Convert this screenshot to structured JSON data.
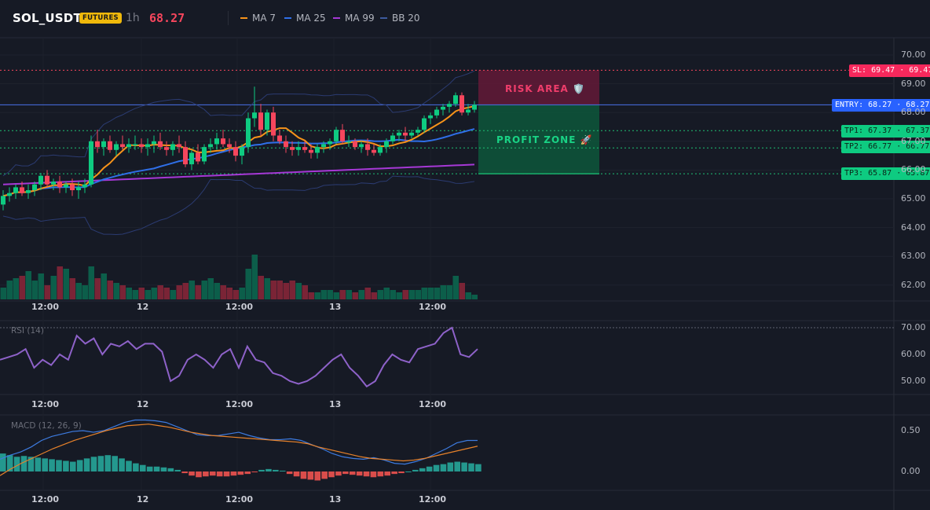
{
  "header": {
    "symbol": "SOL_USDT",
    "badge": "FUTURES",
    "timeframe": "1h",
    "price": "68.27",
    "legend": [
      {
        "label": "MA 7",
        "color": "#f7931a"
      },
      {
        "label": "MA 25",
        "color": "#2f6fe8"
      },
      {
        "label": "MA 99",
        "color": "#a638d6"
      },
      {
        "label": "BB 20",
        "color": "#3d5a9e"
      }
    ]
  },
  "colors": {
    "up": "#0ecb81",
    "down": "#f6465d",
    "ma7": "#f7931a",
    "ma25": "#2f6fe8",
    "ma99": "#a638d6",
    "bb": "#2e3f7a",
    "rsi": "#8e62c9",
    "macd": "#3d7be0",
    "signal": "#e8822a"
  },
  "price_axis": [
    "70.00",
    "69.00",
    "68.00",
    "67.00",
    "66.00",
    "65.00",
    "64.00",
    "63.00",
    "62.00"
  ],
  "price_levels": {
    "sl": {
      "label": "SL: 69.47 · 69.47",
      "value": 69.47
    },
    "entry": {
      "label": "ENTRY: 68.27 · 68.27",
      "value": 68.27
    },
    "tp1": {
      "label": "TP1: 67.37 · 67.37",
      "value": 67.37
    },
    "tp2": {
      "label": "TP2: 66.77 · 66.77",
      "value": 66.77
    },
    "tp3": {
      "label": "TP3: 65.87 · 65.87",
      "value": 65.87
    }
  },
  "zones": {
    "risk": "RISK AREA 🛡️",
    "profit": "PROFIT ZONE 🚀"
  },
  "time_labels": [
    "12:00",
    "12",
    "12:00",
    "13",
    "12:00"
  ],
  "rsi": {
    "title": "RSI (14)",
    "axis": [
      "70.00",
      "60.00",
      "50.00"
    ]
  },
  "macd": {
    "title": "MACD (12, 26, 9)",
    "axis": [
      "0.50",
      "0.00"
    ]
  },
  "chart_data": {
    "type": "candlestick",
    "candles": [
      [
        64.8,
        65.3,
        64.6,
        65.1
      ],
      [
        65.1,
        65.4,
        64.9,
        65.2
      ],
      [
        65.2,
        65.5,
        65.0,
        65.4
      ],
      [
        65.4,
        65.6,
        65.1,
        65.2
      ],
      [
        65.2,
        65.5,
        65.0,
        65.3
      ],
      [
        65.3,
        65.6,
        65.1,
        65.5
      ],
      [
        65.5,
        65.9,
        65.3,
        65.8
      ],
      [
        65.8,
        66.0,
        65.4,
        65.5
      ],
      [
        65.5,
        65.7,
        65.3,
        65.6
      ],
      [
        65.6,
        65.8,
        65.2,
        65.4
      ],
      [
        65.4,
        65.6,
        65.2,
        65.5
      ],
      [
        65.5,
        65.7,
        65.1,
        65.3
      ],
      [
        65.3,
        65.6,
        65.0,
        65.4
      ],
      [
        65.4,
        65.7,
        65.2,
        65.5
      ],
      [
        65.5,
        67.2,
        65.4,
        67.0
      ],
      [
        67.0,
        67.4,
        66.6,
        66.8
      ],
      [
        66.8,
        67.1,
        66.5,
        67.0
      ],
      [
        67.0,
        67.2,
        66.6,
        66.7
      ],
      [
        66.7,
        67.0,
        66.5,
        66.9
      ],
      [
        66.9,
        67.2,
        66.7,
        66.8
      ],
      [
        66.8,
        67.1,
        66.6,
        66.9
      ],
      [
        66.9,
        67.2,
        66.7,
        66.9
      ],
      [
        66.9,
        67.1,
        66.6,
        66.8
      ],
      [
        66.8,
        67.1,
        66.5,
        66.9
      ],
      [
        66.9,
        67.2,
        66.6,
        67.0
      ],
      [
        67.0,
        67.3,
        66.7,
        66.8
      ],
      [
        66.8,
        67.0,
        66.5,
        66.7
      ],
      [
        66.7,
        67.0,
        66.5,
        66.9
      ],
      [
        66.9,
        67.2,
        66.6,
        66.8
      ],
      [
        66.8,
        67.0,
        66.1,
        66.2
      ],
      [
        66.2,
        66.7,
        66.0,
        66.6
      ],
      [
        66.6,
        66.9,
        66.2,
        66.3
      ],
      [
        66.3,
        66.9,
        66.2,
        66.8
      ],
      [
        66.8,
        67.1,
        66.6,
        66.9
      ],
      [
        66.9,
        67.3,
        66.7,
        67.1
      ],
      [
        67.1,
        67.4,
        66.8,
        66.9
      ],
      [
        66.9,
        67.1,
        66.6,
        66.8
      ],
      [
        66.8,
        67.0,
        66.3,
        66.5
      ],
      [
        66.5,
        66.9,
        66.2,
        66.8
      ],
      [
        66.8,
        68.0,
        66.6,
        67.8
      ],
      [
        67.8,
        68.9,
        67.5,
        68.0
      ],
      [
        68.0,
        68.3,
        67.2,
        67.4
      ],
      [
        67.4,
        68.1,
        67.2,
        68.0
      ],
      [
        68.0,
        68.2,
        67.0,
        67.2
      ],
      [
        67.2,
        67.4,
        66.9,
        67.0
      ],
      [
        67.0,
        67.2,
        66.6,
        66.8
      ],
      [
        66.8,
        67.0,
        66.5,
        66.7
      ],
      [
        66.7,
        67.0,
        66.5,
        66.8
      ],
      [
        66.8,
        67.0,
        66.6,
        66.7
      ],
      [
        66.7,
        66.9,
        66.4,
        66.6
      ],
      [
        66.6,
        66.9,
        66.4,
        66.8
      ],
      [
        66.8,
        67.0,
        66.6,
        66.9
      ],
      [
        66.9,
        67.1,
        66.7,
        67.0
      ],
      [
        67.0,
        67.5,
        66.9,
        67.4
      ],
      [
        67.4,
        67.6,
        66.9,
        67.0
      ],
      [
        67.0,
        67.2,
        66.8,
        67.0
      ],
      [
        67.0,
        67.1,
        66.7,
        66.8
      ],
      [
        66.8,
        67.0,
        66.6,
        66.9
      ],
      [
        66.9,
        67.1,
        66.5,
        66.7
      ],
      [
        66.7,
        66.9,
        66.5,
        66.6
      ],
      [
        66.6,
        66.9,
        66.5,
        66.8
      ],
      [
        66.8,
        67.1,
        66.6,
        67.0
      ],
      [
        67.0,
        67.3,
        66.9,
        67.2
      ],
      [
        67.2,
        67.4,
        67.0,
        67.3
      ],
      [
        67.3,
        67.5,
        67.0,
        67.2
      ],
      [
        67.2,
        67.4,
        67.1,
        67.3
      ],
      [
        67.3,
        67.5,
        67.2,
        67.4
      ],
      [
        67.4,
        67.9,
        67.3,
        67.8
      ],
      [
        67.8,
        68.0,
        67.6,
        67.9
      ],
      [
        67.9,
        68.2,
        67.8,
        68.1
      ],
      [
        68.1,
        68.3,
        67.9,
        68.2
      ],
      [
        68.2,
        68.4,
        68.0,
        68.3
      ],
      [
        68.3,
        68.7,
        68.2,
        68.6
      ],
      [
        68.6,
        68.7,
        67.9,
        68.0
      ],
      [
        68.0,
        68.3,
        67.9,
        68.1
      ],
      [
        68.1,
        68.4,
        68.0,
        68.27
      ]
    ],
    "volumes": [
      5,
      8,
      9,
      10,
      12,
      8,
      11,
      6,
      10,
      14,
      13,
      9,
      7,
      6,
      14,
      9,
      11,
      8,
      7,
      6,
      5,
      4,
      5,
      4,
      5,
      6,
      5,
      4,
      6,
      7,
      8,
      6,
      8,
      9,
      7,
      6,
      5,
      4,
      5,
      13,
      19,
      10,
      9,
      8,
      8,
      7,
      8,
      7,
      6,
      3,
      3,
      4,
      4,
      3,
      4,
      4,
      3,
      4,
      5,
      3,
      4,
      5,
      4,
      3,
      4,
      4,
      4,
      5,
      5,
      5,
      6,
      6,
      10,
      7,
      3,
      2
    ],
    "rsi": [
      58,
      59,
      60,
      62,
      55,
      58,
      56,
      60,
      58,
      67,
      64,
      66,
      60,
      64,
      63,
      65,
      62,
      64,
      64,
      61,
      50,
      52,
      58,
      60,
      58,
      55,
      60,
      62,
      55,
      63,
      58,
      57,
      53,
      52,
      50,
      49,
      50,
      52,
      55,
      58,
      60,
      55,
      52,
      48,
      50,
      56,
      60,
      58,
      57,
      62,
      63,
      64,
      68,
      70,
      60,
      59,
      62
    ],
    "macd_hist": [
      0.22,
      0.2,
      0.18,
      0.19,
      0.18,
      0.17,
      0.16,
      0.15,
      0.14,
      0.13,
      0.12,
      0.14,
      0.16,
      0.18,
      0.19,
      0.2,
      0.19,
      0.16,
      0.13,
      0.1,
      0.08,
      0.06,
      0.06,
      0.05,
      0.04,
      0.02,
      -0.02,
      -0.05,
      -0.07,
      -0.06,
      -0.05,
      -0.06,
      -0.06,
      -0.05,
      -0.04,
      -0.03,
      -0.01,
      0.02,
      0.03,
      0.02,
      0.01,
      -0.03,
      -0.06,
      -0.09,
      -0.1,
      -0.11,
      -0.09,
      -0.07,
      -0.05,
      -0.03,
      -0.04,
      -0.05,
      -0.06,
      -0.07,
      -0.06,
      -0.05,
      -0.03,
      -0.02,
      0.0,
      0.02,
      0.04,
      0.06,
      0.08,
      0.09,
      0.11,
      0.12,
      0.11,
      0.1,
      0.09
    ],
    "macd_line": [
      0.15,
      0.2,
      0.24,
      0.3,
      0.38,
      0.43,
      0.46,
      0.49,
      0.5,
      0.48,
      0.5,
      0.55,
      0.6,
      0.63,
      0.63,
      0.62,
      0.6,
      0.55,
      0.5,
      0.45,
      0.44,
      0.44,
      0.46,
      0.48,
      0.44,
      0.41,
      0.39,
      0.39,
      0.4,
      0.38,
      0.33,
      0.28,
      0.22,
      0.18,
      0.16,
      0.15,
      0.17,
      0.14,
      0.1,
      0.09,
      0.12,
      0.16,
      0.22,
      0.28,
      0.35,
      0.38,
      0.38
    ],
    "signal_line": [
      -0.05,
      0.03,
      0.1,
      0.16,
      0.22,
      0.28,
      0.33,
      0.38,
      0.42,
      0.46,
      0.5,
      0.53,
      0.56,
      0.57,
      0.58,
      0.56,
      0.54,
      0.51,
      0.48,
      0.46,
      0.44,
      0.43,
      0.42,
      0.41,
      0.4,
      0.39,
      0.38,
      0.37,
      0.36,
      0.34,
      0.3,
      0.27,
      0.24,
      0.21,
      0.18,
      0.16,
      0.15,
      0.14,
      0.13,
      0.14,
      0.16,
      0.19,
      0.22,
      0.25,
      0.28,
      0.31
    ]
  }
}
